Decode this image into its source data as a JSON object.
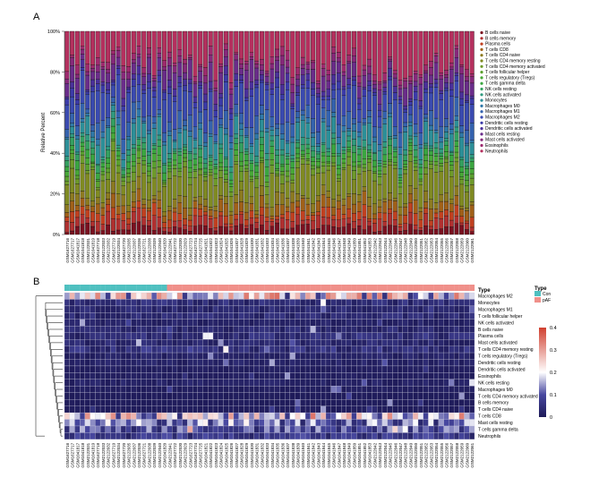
{
  "panel_a": {
    "label": "A"
  },
  "panel_b": {
    "label": "B"
  },
  "chart_data": [
    {
      "type": "bar",
      "stacked": true,
      "panel": "A",
      "ylabel": "Relative Percent",
      "ylim": [
        0,
        1
      ],
      "yticks": [
        "0%",
        "20%",
        "40%",
        "60%",
        "80%",
        "100%"
      ],
      "categories": [
        "GSM1627716",
        "GSM1627717",
        "GSM1041817",
        "GSM1041818",
        "GSM2122031",
        "GSM1041819",
        "GSM1627718",
        "GSM2122033",
        "GSM2122032",
        "GSM1627719",
        "GSM2122034",
        "GSM1627720",
        "GSM2122035",
        "GSM2122037",
        "GSM2122036",
        "GSM1627721",
        "GSM2122038",
        "GSM2122039",
        "GSM2122040",
        "GSM1041820",
        "GSM2122041",
        "GSM1627722",
        "GSM2122030",
        "GSM2122029",
        "GSM1627723",
        "GSM1627724",
        "GSM1627725",
        "GSM1041821",
        "GSM1041822",
        "GSM1041823",
        "GSM1041824",
        "GSM1041825",
        "GSM1041826",
        "GSM1041827",
        "GSM1041828",
        "GSM1041829",
        "GSM1041830",
        "GSM1041831",
        "GSM1041832",
        "GSM1041833",
        "GSM1041834",
        "GSM1041835",
        "GSM1041836",
        "GSM1041837",
        "GSM1041838",
        "GSM1041839",
        "GSM1041840",
        "GSM1041841",
        "GSM1041842",
        "GSM1041843",
        "GSM1041844",
        "GSM1041845",
        "GSM1041846",
        "GSM1041847",
        "GSM1041848",
        "GSM1041849",
        "GSM1041850",
        "GSM1041851",
        "GSM1041852",
        "GSM1041853",
        "GSM2122042",
        "GSM2122043",
        "GSM2122044",
        "GSM2122045",
        "GSM2122046",
        "GSM2122047",
        "GSM2122048",
        "GSM2122049",
        "GSM2122050",
        "GSM2122051",
        "GSM2122052",
        "GSM2122053",
        "GSM2122054",
        "GSM2122055",
        "GSM2122056",
        "GSM2122057",
        "GSM2122058",
        "GSM2122059",
        "GSM2122060",
        "GSM2122061"
      ],
      "legend": {
        "position": "right",
        "entries": [
          "B cells naive",
          "B cells memory",
          "Plasma cells",
          "T cells CD8",
          "T cells CD4 naive",
          "T cells CD4 memory resting",
          "T cells CD4 memory activated",
          "T cells follicular helper",
          "T cells regulatory (Tregs)",
          "T cells gamma delta",
          "NK cells resting",
          "NK cells activated",
          "Monocytes",
          "Macrophages M0",
          "Macrophages M1",
          "Macrophages M2",
          "Dendritic cells resting",
          "Dendritic cells activated",
          "Mast cells resting",
          "Mast cells activated",
          "Eosinophils",
          "Neutrophils"
        ]
      },
      "colors": [
        "#7a1020",
        "#b03030",
        "#c04020",
        "#a06018",
        "#8c7a20",
        "#7f8a22",
        "#6e9a2a",
        "#5aa02e",
        "#48a838",
        "#3aa640",
        "#34a060",
        "#2f9a7e",
        "#2c8f98",
        "#2f78a8",
        "#3462ae",
        "#3a4ab0",
        "#3b3aa8",
        "#4a309a",
        "#6a2c8a",
        "#86287a",
        "#9e2a6e",
        "#b4305e"
      ],
      "mean_fractions": [
        0.025,
        0.03,
        0.025,
        0.03,
        0.025,
        0.08,
        0.02,
        0.015,
        0.015,
        0.02,
        0.02,
        0.015,
        0.05,
        0.015,
        0.04,
        0.08,
        0.02,
        0.02,
        0.045,
        0.02,
        0.02,
        0.12
      ]
    },
    {
      "type": "heatmap",
      "panel": "B",
      "annotation_title": "Type",
      "annotation_legend": {
        "title": "Type",
        "entries": [
          {
            "label": "Con",
            "color": "#4fc0c0"
          },
          {
            "label": "pAF",
            "color": "#f0908a"
          }
        ]
      },
      "annotation": {
        "Con": 20,
        "pAF": 60
      },
      "rows": [
        "Macrophages M2",
        "Monocytes",
        "Macrophages M1",
        "T cells follicular helper",
        "NK cells activated",
        "B cells naive",
        "Plasma cells",
        "Mast cells activated",
        "T cells CD4 memory resting",
        "T cells regulatory (Tregs)",
        "Dendritic cells resting",
        "Dendritic cells activated",
        "Eosinophils",
        "NK cells resting",
        "Macrophages M0",
        "T cells CD4 memory activated",
        "B cells memory",
        "T cells CD4 naive",
        "T cells CD8",
        "Mast cells resting",
        "T cells gamma delta",
        "Neutrophils"
      ],
      "row_means": [
        0.2,
        0.04,
        0.03,
        0.035,
        0.02,
        0.03,
        0.04,
        0.03,
        0.05,
        0.02,
        0.02,
        0.01,
        0.01,
        0.02,
        0.01,
        0.005,
        0.005,
        0.005,
        0.18,
        0.12,
        0.09,
        0.06
      ],
      "color_scale": {
        "ticks": [
          "0.4",
          "0.3",
          "0.2",
          "0.1",
          "0"
        ],
        "range": [
          0,
          0.4
        ],
        "colors": [
          "#1e1a58",
          "#4848a0",
          "#ffffff",
          "#d04030"
        ]
      }
    }
  ]
}
